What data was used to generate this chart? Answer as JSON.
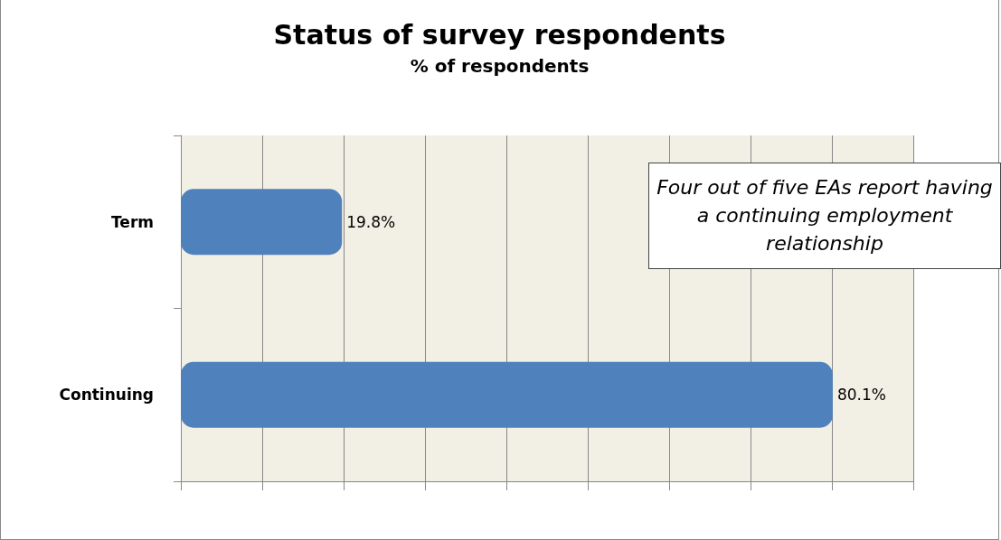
{
  "chart_data": {
    "type": "bar",
    "orientation": "horizontal",
    "title": "Status of survey respondents",
    "subtitle": "% of respondents",
    "categories": [
      "Term",
      "Continuing"
    ],
    "series": [
      {
        "color": "#4f81bd",
        "values": [
          19.8,
          80.1
        ],
        "value_labels": [
          "19.8%",
          "80.1%"
        ]
      }
    ],
    "xlim": [
      0,
      90
    ],
    "xticks": [
      {
        "value": 0,
        "label": null
      },
      {
        "value": 10,
        "label": null
      },
      {
        "value": 20,
        "label": null
      },
      {
        "value": 30,
        "label": null
      },
      {
        "value": 40,
        "label": null
      },
      {
        "value": 50,
        "label": null
      },
      {
        "value": 60,
        "label": null
      },
      {
        "value": 70,
        "label": null
      },
      {
        "value": 80,
        "label": null
      },
      {
        "value": 90,
        "label": null
      }
    ],
    "grid": "x",
    "annotations": [
      "Four out of five EAs report having a continuing employment relationship"
    ]
  }
}
